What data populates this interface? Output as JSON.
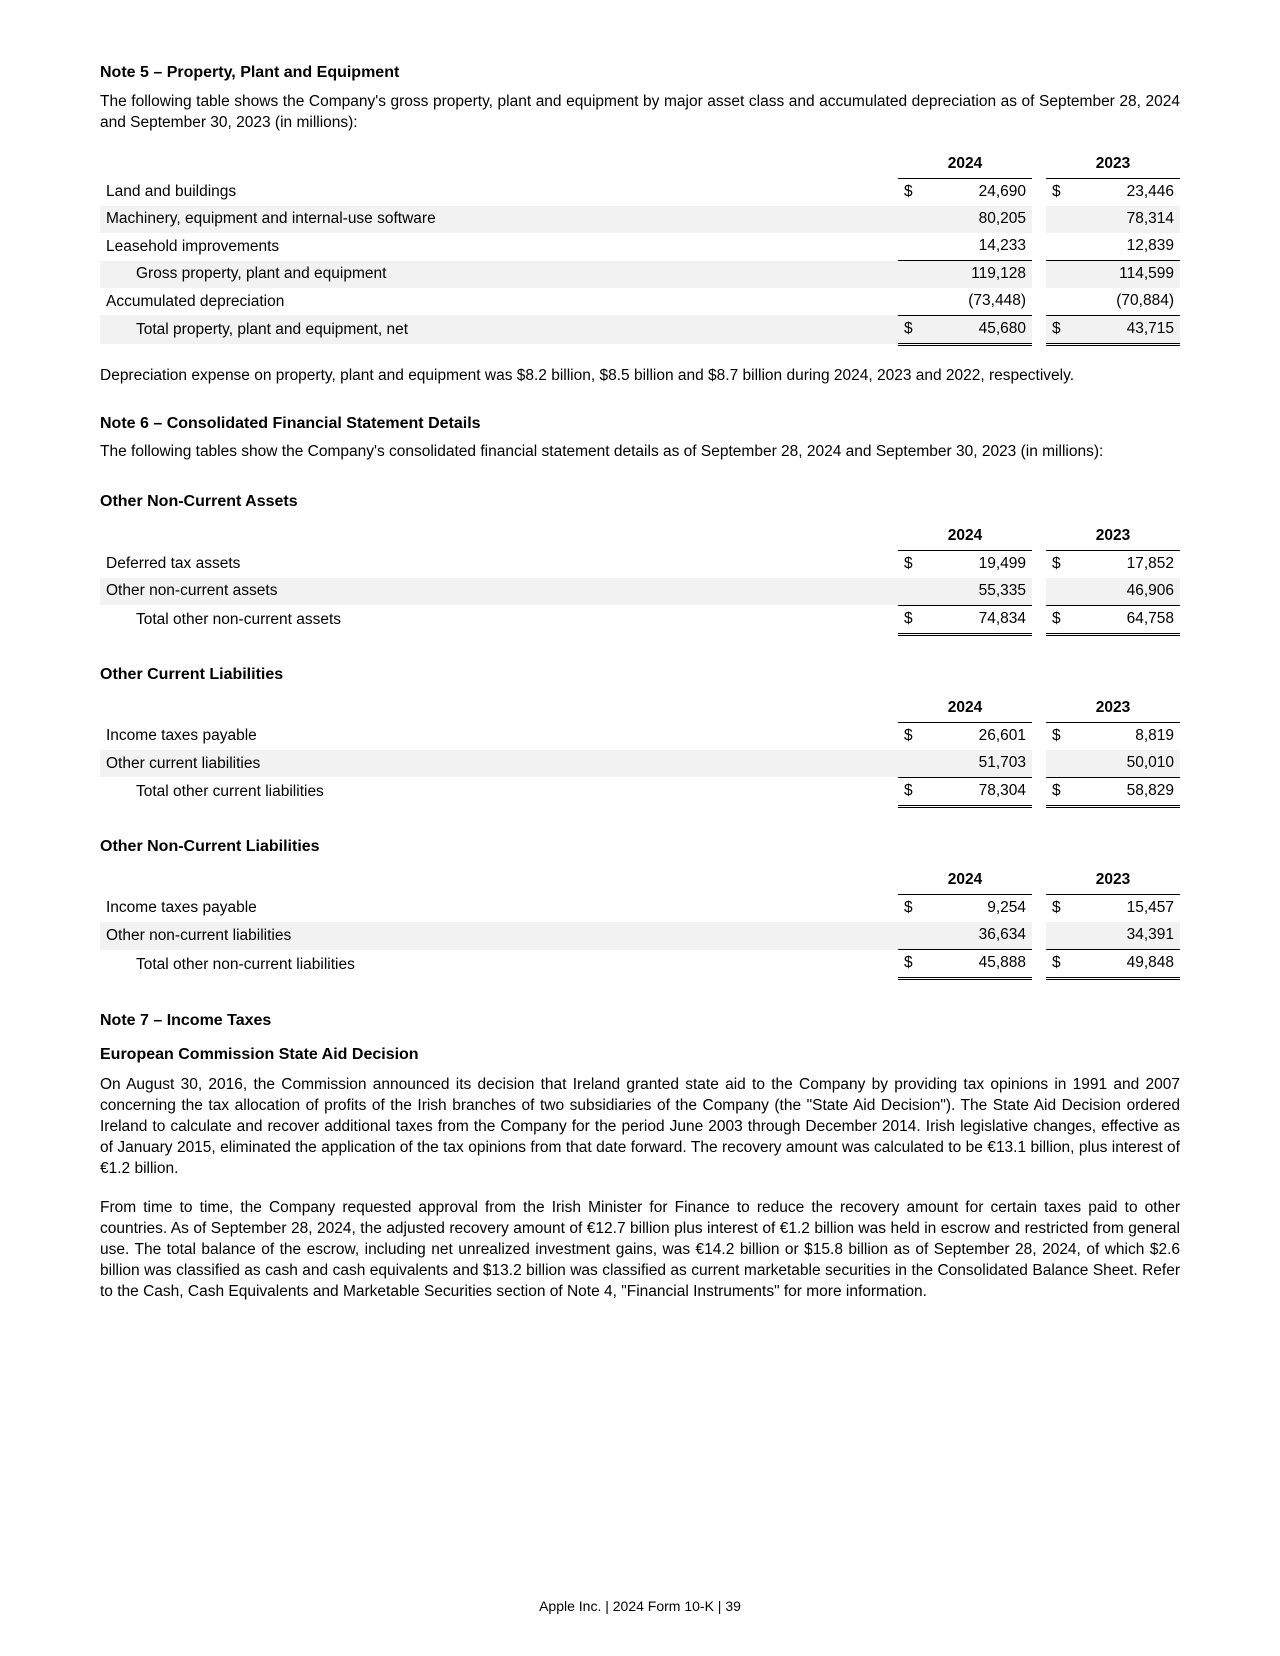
{
  "colors": {
    "background": "#ffffff",
    "text": "#000000",
    "shade": "#f2f2f2",
    "rule": "#000000"
  },
  "fontsize": {
    "body": 15.5,
    "title": 16
  },
  "note5": {
    "title": "Note 5 – Property, Plant and Equipment",
    "intro": "The following table shows the Company's gross property, plant and equipment by major asset class and accumulated depreciation as of September 28, 2024 and September 30, 2023 (in millions):",
    "footnote": "Depreciation expense on property, plant and equipment was $8.2 billion, $8.5 billion and $8.7 billion during 2024, 2023 and 2022, respectively.",
    "years": [
      "2024",
      "2023"
    ],
    "rows": [
      {
        "label": "Land and buildings",
        "v": [
          "24,690",
          "23,446"
        ],
        "dollar": true,
        "indent": 0,
        "shade": false,
        "type": "normal"
      },
      {
        "label": "Machinery, equipment and internal-use software",
        "v": [
          "80,205",
          "78,314"
        ],
        "dollar": false,
        "indent": 0,
        "shade": true,
        "type": "normal"
      },
      {
        "label": "Leasehold improvements",
        "v": [
          "14,233",
          "12,839"
        ],
        "dollar": false,
        "indent": 0,
        "shade": false,
        "type": "normal"
      },
      {
        "label": "Gross property, plant and equipment",
        "v": [
          "119,128",
          "114,599"
        ],
        "dollar": false,
        "indent": 1,
        "shade": true,
        "type": "subtotal"
      },
      {
        "label": "Accumulated depreciation",
        "v": [
          "(73,448)",
          "(70,884)"
        ],
        "dollar": false,
        "indent": 0,
        "shade": false,
        "type": "normal"
      },
      {
        "label": "Total property, plant and equipment, net",
        "v": [
          "45,680",
          "43,715"
        ],
        "dollar": true,
        "indent": 1,
        "shade": true,
        "type": "grand"
      }
    ]
  },
  "note6": {
    "title": "Note 6 – Consolidated Financial Statement Details",
    "intro": "The following tables show the Company's consolidated financial statement details as of September 28, 2024 and September 30, 2023 (in millions):",
    "years": [
      "2024",
      "2023"
    ],
    "sections": [
      {
        "title": "Other Non-Current Assets",
        "rows": [
          {
            "label": "Deferred tax assets",
            "v": [
              "19,499",
              "17,852"
            ],
            "dollar": true,
            "indent": 0,
            "shade": false,
            "type": "normal"
          },
          {
            "label": "Other non-current assets",
            "v": [
              "55,335",
              "46,906"
            ],
            "dollar": false,
            "indent": 0,
            "shade": true,
            "type": "normal"
          },
          {
            "label": "Total other non-current assets",
            "v": [
              "74,834",
              "64,758"
            ],
            "dollar": true,
            "indent": 1,
            "shade": false,
            "type": "grand"
          }
        ]
      },
      {
        "title": "Other Current Liabilities",
        "rows": [
          {
            "label": "Income taxes payable",
            "v": [
              "26,601",
              "8,819"
            ],
            "dollar": true,
            "indent": 0,
            "shade": false,
            "type": "normal"
          },
          {
            "label": "Other current liabilities",
            "v": [
              "51,703",
              "50,010"
            ],
            "dollar": false,
            "indent": 0,
            "shade": true,
            "type": "normal"
          },
          {
            "label": "Total other current liabilities",
            "v": [
              "78,304",
              "58,829"
            ],
            "dollar": true,
            "indent": 1,
            "shade": false,
            "type": "grand"
          }
        ]
      },
      {
        "title": "Other Non-Current Liabilities",
        "rows": [
          {
            "label": "Income taxes payable",
            "v": [
              "9,254",
              "15,457"
            ],
            "dollar": true,
            "indent": 0,
            "shade": false,
            "type": "normal"
          },
          {
            "label": "Other non-current liabilities",
            "v": [
              "36,634",
              "34,391"
            ],
            "dollar": false,
            "indent": 0,
            "shade": true,
            "type": "normal"
          },
          {
            "label": "Total other non-current liabilities",
            "v": [
              "45,888",
              "49,848"
            ],
            "dollar": true,
            "indent": 1,
            "shade": false,
            "type": "grand"
          }
        ]
      }
    ]
  },
  "note7": {
    "title": "Note 7 – Income Taxes",
    "subtitle": "European Commission State Aid Decision",
    "p1": "On August 30, 2016, the Commission announced its decision that Ireland granted state aid to the Company by providing tax opinions in 1991 and 2007 concerning the tax allocation of profits of the Irish branches of two subsidiaries of the Company (the \"State Aid Decision\"). The State Aid Decision ordered Ireland to calculate and recover additional taxes from the Company for the period June 2003 through December 2014. Irish legislative changes, effective as of January 2015, eliminated the application of the tax opinions from that date forward. The recovery amount was calculated to be €13.1 billion, plus interest of €1.2 billion.",
    "p2": "From time to time, the Company requested approval from the Irish Minister for Finance to reduce the recovery amount for certain taxes paid to other countries. As of September 28, 2024, the adjusted recovery amount of €12.7 billion plus interest of €1.2 billion was held in escrow and restricted from general use. The total balance of the escrow, including net unrealized investment gains, was €14.2 billion or $15.8 billion as of September 28, 2024, of which $2.6 billion was classified as cash and cash equivalents and $13.2 billion was classified as current marketable securities in the Consolidated Balance Sheet. Refer to the Cash, Cash Equivalents and Marketable Securities section of Note 4, \"Financial Instruments\" for more information."
  },
  "footer": "Apple Inc. | 2024 Form 10-K | 39"
}
